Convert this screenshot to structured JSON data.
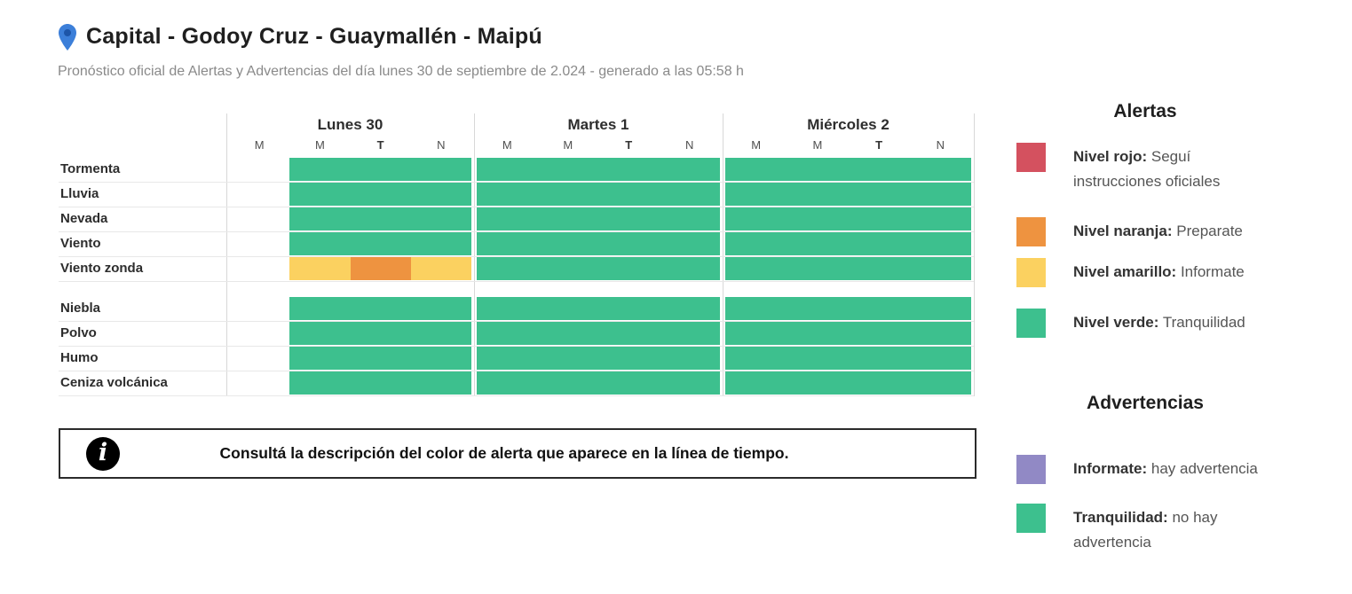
{
  "colors": {
    "green": "#3dc08e",
    "yellow": "#fbd160",
    "orange": "#ee9340",
    "red": "#d4515f",
    "purple": "#9189c5"
  },
  "header": {
    "title": "Capital - Godoy Cruz - Guaymallén - Maipú",
    "subtitle": "Pronóstico oficial de Alertas y Advertencias del día lunes 30 de septiembre de 2.024 - generado a las 05:58 h"
  },
  "timeline": {
    "days": [
      {
        "label": "Lunes 30",
        "periods": [
          "M",
          "M",
          "T",
          "N"
        ]
      },
      {
        "label": "Martes 1",
        "periods": [
          "M",
          "M",
          "T",
          "N"
        ]
      },
      {
        "label": "Miércoles 2",
        "periods": [
          "M",
          "M",
          "T",
          "N"
        ]
      }
    ],
    "row_groups": [
      {
        "rows": [
          {
            "label": "Tormenta",
            "bars": [
              [
                {
                  "c": "green",
                  "from": 1,
                  "to": 4
                }
              ],
              [
                {
                  "c": "green",
                  "from": 0,
                  "to": 4
                }
              ],
              [
                {
                  "c": "green",
                  "from": 0,
                  "to": 4
                }
              ]
            ]
          },
          {
            "label": "Lluvia",
            "bars": [
              [
                {
                  "c": "green",
                  "from": 1,
                  "to": 4
                }
              ],
              [
                {
                  "c": "green",
                  "from": 0,
                  "to": 4
                }
              ],
              [
                {
                  "c": "green",
                  "from": 0,
                  "to": 4
                }
              ]
            ]
          },
          {
            "label": "Nevada",
            "bars": [
              [
                {
                  "c": "green",
                  "from": 1,
                  "to": 4
                }
              ],
              [
                {
                  "c": "green",
                  "from": 0,
                  "to": 4
                }
              ],
              [
                {
                  "c": "green",
                  "from": 0,
                  "to": 4
                }
              ]
            ]
          },
          {
            "label": "Viento",
            "bars": [
              [
                {
                  "c": "green",
                  "from": 1,
                  "to": 4
                }
              ],
              [
                {
                  "c": "green",
                  "from": 0,
                  "to": 4
                }
              ],
              [
                {
                  "c": "green",
                  "from": 0,
                  "to": 4
                }
              ]
            ]
          },
          {
            "label": "Viento zonda",
            "bars": [
              [
                {
                  "c": "yellow",
                  "from": 1,
                  "to": 2
                },
                {
                  "c": "orange",
                  "from": 2,
                  "to": 3
                },
                {
                  "c": "yellow",
                  "from": 3,
                  "to": 4
                }
              ],
              [
                {
                  "c": "green",
                  "from": 0,
                  "to": 4
                }
              ],
              [
                {
                  "c": "green",
                  "from": 0,
                  "to": 4
                }
              ]
            ]
          }
        ]
      },
      {
        "rows": [
          {
            "label": "Niebla",
            "bars": [
              [
                {
                  "c": "green",
                  "from": 1,
                  "to": 4
                }
              ],
              [
                {
                  "c": "green",
                  "from": 0,
                  "to": 4
                }
              ],
              [
                {
                  "c": "green",
                  "from": 0,
                  "to": 4
                }
              ]
            ]
          },
          {
            "label": "Polvo",
            "bars": [
              [
                {
                  "c": "green",
                  "from": 1,
                  "to": 4
                }
              ],
              [
                {
                  "c": "green",
                  "from": 0,
                  "to": 4
                }
              ],
              [
                {
                  "c": "green",
                  "from": 0,
                  "to": 4
                }
              ]
            ]
          },
          {
            "label": "Humo",
            "bars": [
              [
                {
                  "c": "green",
                  "from": 1,
                  "to": 4
                }
              ],
              [
                {
                  "c": "green",
                  "from": 0,
                  "to": 4
                }
              ],
              [
                {
                  "c": "green",
                  "from": 0,
                  "to": 4
                }
              ]
            ]
          },
          {
            "label": "Ceniza volcánica",
            "bars": [
              [
                {
                  "c": "green",
                  "from": 1,
                  "to": 4
                }
              ],
              [
                {
                  "c": "green",
                  "from": 0,
                  "to": 4
                }
              ],
              [
                {
                  "c": "green",
                  "from": 0,
                  "to": 4
                }
              ]
            ]
          }
        ]
      }
    ]
  },
  "info_box": {
    "icon_glyph": "i",
    "text": "Consultá la descripción del color de alerta que aparece en la línea de tiempo."
  },
  "legend": {
    "alerts": {
      "title": "Alertas",
      "items": [
        {
          "color": "#d4515f",
          "label": "Nivel rojo:",
          "desc": "Seguí\ninstrucciones oficiales"
        },
        {
          "color": "#ee9340",
          "label": "Nivel naranja:",
          "desc": "Preparate"
        },
        {
          "color": "#fbd160",
          "label": "Nivel amarillo:",
          "desc": "Informate"
        },
        {
          "color": "#3dc08e",
          "label": "Nivel verde:",
          "desc": "Tranquilidad"
        }
      ]
    },
    "warnings": {
      "title": "Advertencias",
      "items": [
        {
          "color": "#9189c5",
          "label": "Informate:",
          "desc": "hay advertencia"
        },
        {
          "color": "#3dc08e",
          "label": "Tranquilidad:",
          "desc": "no hay\nadvertencia"
        }
      ]
    }
  }
}
